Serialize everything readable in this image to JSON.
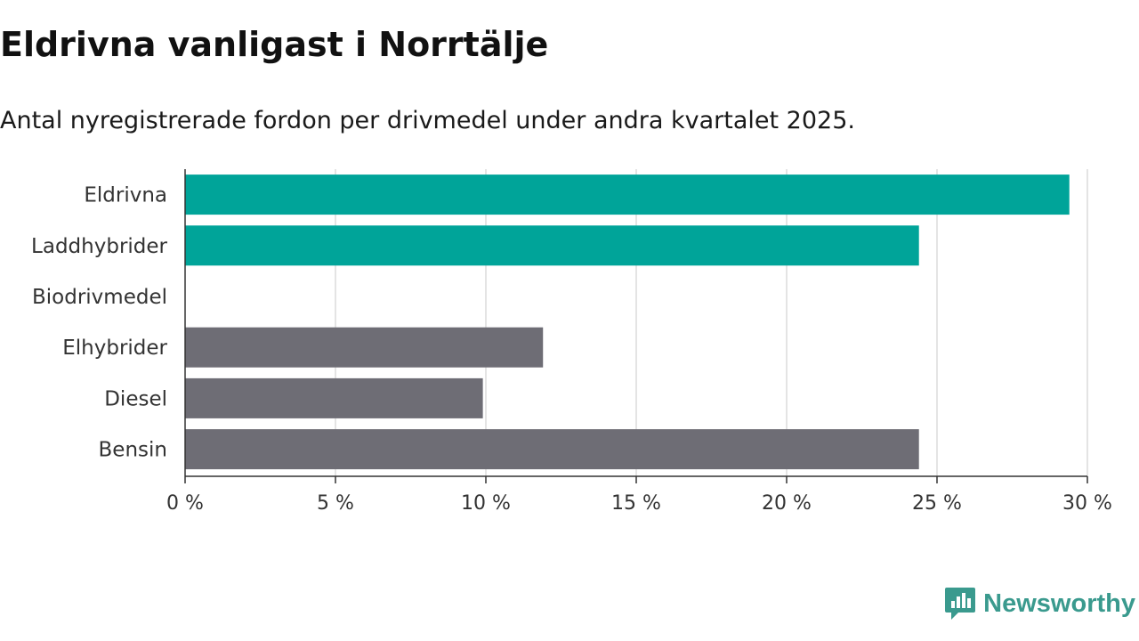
{
  "title": "Eldrivna vanligast i Norrtälje",
  "subtitle": "Antal nyregistrerade fordon per drivmedel under andra kvartalet 2025.",
  "brand": {
    "name": "Newsworthy",
    "icon": "newsworthy-logo-icon",
    "color": "#3a9a8e"
  },
  "chart_data": {
    "type": "bar",
    "orientation": "horizontal",
    "categories": [
      "Eldrivna",
      "Laddhybrider",
      "Biodrivmedel",
      "Elhybrider",
      "Diesel",
      "Bensin"
    ],
    "values": [
      29.4,
      24.4,
      0,
      11.9,
      9.9,
      24.4
    ],
    "colors": [
      "#00a499",
      "#00a499",
      "#00a499",
      "#6e6d75",
      "#6e6d75",
      "#6e6d75"
    ],
    "xlim": [
      0,
      30
    ],
    "xticks": [
      0,
      5,
      10,
      15,
      20,
      25,
      30
    ],
    "tick_labels": [
      "0 %",
      "5 %",
      "10 %",
      "15 %",
      "20 %",
      "25 %",
      "30 %"
    ],
    "grid": true
  }
}
